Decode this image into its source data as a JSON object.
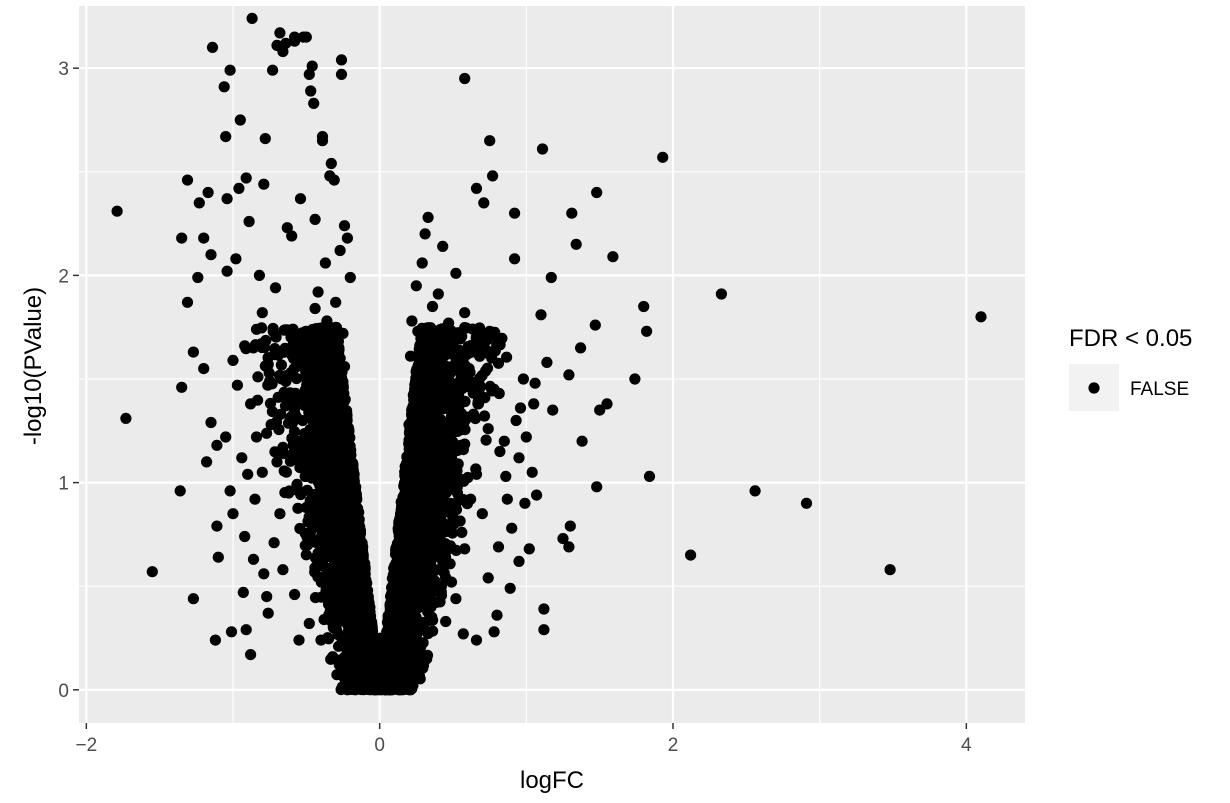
{
  "chart_data": {
    "type": "scatter",
    "title": "",
    "xlabel": "logFC",
    "ylabel": "-log10(PValue)",
    "xlim": [
      -2.05,
      4.4
    ],
    "ylim": [
      -0.16,
      3.3
    ],
    "x_ticks": [
      -2,
      0,
      2,
      4
    ],
    "x_tick_labels": [
      "−2",
      "0",
      "2",
      "4"
    ],
    "y_ticks": [
      0,
      1,
      2,
      3
    ],
    "y_tick_labels": [
      "0",
      "1",
      "2",
      "3"
    ],
    "grid": true,
    "legend": {
      "title": "FDR < 0.05",
      "position": "right",
      "entries": [
        {
          "label": "FALSE",
          "color": "#000000"
        }
      ]
    },
    "colors": {
      "panel": "#ebebeb",
      "grid_major": "#ffffff",
      "points": "#000000"
    },
    "series": [
      {
        "name": "FALSE",
        "points": [
          [
            -1.79,
            2.31
          ],
          [
            -1.73,
            1.31
          ],
          [
            -1.55,
            0.57
          ],
          [
            -1.36,
            0.96
          ],
          [
            -1.35,
            1.46
          ],
          [
            -1.35,
            2.18
          ],
          [
            -1.31,
            2.46
          ],
          [
            -1.31,
            1.87
          ],
          [
            -1.27,
            0.44
          ],
          [
            -1.27,
            1.63
          ],
          [
            -1.24,
            1.99
          ],
          [
            -1.23,
            2.35
          ],
          [
            -1.2,
            2.18
          ],
          [
            -1.2,
            1.55
          ],
          [
            -1.18,
            1.1
          ],
          [
            -1.17,
            2.4
          ],
          [
            -1.15,
            1.29
          ],
          [
            -1.15,
            2.1
          ],
          [
            -1.14,
            3.1
          ],
          [
            -1.12,
            0.24
          ],
          [
            -1.11,
            0.79
          ],
          [
            -1.11,
            1.18
          ],
          [
            -1.1,
            0.64
          ],
          [
            -1.06,
            2.91
          ],
          [
            -1.05,
            1.22
          ],
          [
            -1.05,
            2.67
          ],
          [
            -1.04,
            2.37
          ],
          [
            -1.04,
            2.02
          ],
          [
            -1.02,
            2.99
          ],
          [
            -1.01,
            0.28
          ],
          [
            -1.0,
            1.59
          ],
          [
            -1.0,
            0.85
          ],
          [
            -0.98,
            2.08
          ],
          [
            -0.96,
            2.42
          ],
          [
            -0.95,
            2.75
          ],
          [
            -0.93,
            0.47
          ],
          [
            -0.92,
            0.74
          ],
          [
            -0.91,
            0.29
          ],
          [
            -0.91,
            2.47
          ],
          [
            -0.9,
            1.04
          ],
          [
            -0.89,
            2.26
          ],
          [
            -0.88,
            0.17
          ],
          [
            -0.87,
            3.24
          ],
          [
            -0.85,
            0.92
          ],
          [
            -0.84,
            1.74
          ],
          [
            -0.82,
            2.0
          ],
          [
            -0.8,
            1.82
          ],
          [
            -0.79,
            2.44
          ],
          [
            -0.79,
            0.56
          ],
          [
            -0.78,
            2.66
          ],
          [
            -0.77,
            0.45
          ],
          [
            -0.75,
            1.49
          ],
          [
            -0.73,
            2.99
          ],
          [
            -0.7,
            3.11
          ],
          [
            -0.68,
            3.17
          ],
          [
            -0.66,
            3.08
          ],
          [
            -0.64,
            3.12
          ],
          [
            -0.63,
            2.23
          ],
          [
            -0.6,
            2.19
          ],
          [
            -0.58,
            3.13
          ],
          [
            -0.58,
            3.15
          ],
          [
            -0.54,
            2.37
          ],
          [
            -0.52,
            3.15
          ],
          [
            -0.5,
            3.15
          ],
          [
            -0.48,
            2.97
          ],
          [
            -0.47,
            2.89
          ],
          [
            -0.46,
            3.01
          ],
          [
            -0.45,
            2.83
          ],
          [
            -0.44,
            2.27
          ],
          [
            -0.39,
            2.65
          ],
          [
            -0.39,
            2.67
          ],
          [
            -0.34,
            2.48
          ],
          [
            -0.33,
            2.54
          ],
          [
            -0.31,
            2.46
          ],
          [
            -0.26,
            3.04
          ],
          [
            -0.26,
            2.97
          ],
          [
            -0.24,
            2.24
          ],
          [
            -0.22,
            2.18
          ],
          [
            -0.2,
            1.99
          ],
          [
            0.58,
            2.95
          ],
          [
            0.66,
            2.42
          ],
          [
            0.71,
            2.35
          ],
          [
            0.75,
            2.65
          ],
          [
            0.77,
            2.48
          ],
          [
            0.92,
            2.3
          ],
          [
            0.92,
            2.08
          ],
          [
            0.98,
            1.5
          ],
          [
            1.06,
            1.48
          ],
          [
            1.1,
            1.81
          ],
          [
            1.11,
            2.61
          ],
          [
            1.14,
            1.58
          ],
          [
            1.17,
            1.99
          ],
          [
            1.18,
            1.35
          ],
          [
            1.29,
            1.52
          ],
          [
            1.31,
            2.3
          ],
          [
            1.34,
            2.15
          ],
          [
            1.37,
            1.65
          ],
          [
            1.38,
            1.2
          ],
          [
            1.47,
            1.76
          ],
          [
            1.48,
            2.4
          ],
          [
            1.5,
            1.35
          ],
          [
            1.55,
            1.38
          ],
          [
            1.59,
            2.09
          ],
          [
            1.74,
            1.5
          ],
          [
            1.8,
            1.85
          ],
          [
            1.82,
            1.73
          ],
          [
            1.84,
            1.03
          ],
          [
            1.93,
            2.57
          ],
          [
            1.48,
            0.98
          ],
          [
            2.12,
            0.65
          ],
          [
            2.33,
            1.91
          ],
          [
            2.56,
            0.96
          ],
          [
            2.91,
            0.9
          ],
          [
            3.48,
            0.58
          ],
          [
            4.1,
            1.8
          ],
          [
            1.12,
            0.29
          ],
          [
            1.12,
            0.39
          ],
          [
            1.3,
            0.79
          ],
          [
            1.29,
            0.69
          ],
          [
            1.25,
            0.73
          ],
          [
            1.02,
            0.68
          ],
          [
            0.95,
            0.62
          ],
          [
            0.99,
            0.9
          ],
          [
            0.8,
            0.36
          ],
          [
            0.78,
            0.28
          ],
          [
            0.66,
            0.24
          ],
          [
            0.57,
            0.27
          ],
          [
            1.07,
            0.94
          ],
          [
            1.04,
            1.05
          ],
          [
            0.85,
            1.2
          ],
          [
            0.49,
            0.52
          ],
          [
            0.35,
            0.4
          ],
          [
            -0.66,
            0.58
          ],
          [
            -0.58,
            0.46
          ],
          [
            -0.55,
            0.24
          ],
          [
            -0.48,
            0.32
          ],
          [
            -0.4,
            0.24
          ],
          [
            -0.32,
            0.16
          ],
          [
            -0.72,
            0.71
          ],
          [
            -0.76,
            0.37
          ],
          [
            -0.56,
            1.64
          ],
          [
            -0.6,
            1.32
          ],
          [
            -0.66,
            1.17
          ],
          [
            -0.7,
            1.1
          ],
          [
            -0.5,
            1.73
          ],
          [
            -0.44,
            1.84
          ],
          [
            -0.42,
            1.92
          ],
          [
            -0.37,
            2.06
          ],
          [
            -0.36,
            1.78
          ],
          [
            -0.3,
            1.87
          ],
          [
            -0.29,
            1.67
          ],
          [
            -0.27,
            2.12
          ],
          [
            -0.25,
            1.72
          ],
          [
            -0.24,
            1.56
          ],
          [
            0.21,
            1.61
          ],
          [
            0.22,
            1.78
          ],
          [
            0.25,
            1.95
          ],
          [
            0.26,
            1.73
          ],
          [
            0.28,
            1.43
          ],
          [
            0.29,
            2.06
          ],
          [
            0.31,
            2.2
          ],
          [
            0.33,
            2.28
          ],
          [
            0.36,
            1.85
          ],
          [
            0.38,
            1.7
          ],
          [
            0.4,
            1.91
          ],
          [
            0.43,
            2.14
          ],
          [
            0.47,
            1.77
          ],
          [
            0.5,
            1.62
          ],
          [
            0.52,
            2.01
          ],
          [
            0.55,
            1.47
          ],
          [
            0.58,
            1.82
          ],
          [
            0.61,
            1.55
          ],
          [
            0.64,
            1.33
          ],
          [
            0.68,
            1.68
          ],
          [
            0.71,
            1.41
          ],
          [
            0.74,
            1.26
          ],
          [
            0.78,
            1.45
          ],
          [
            0.82,
            1.15
          ],
          [
            0.86,
            1.03
          ],
          [
            0.9,
            0.78
          ],
          [
            0.93,
            1.3
          ],
          [
            0.95,
            1.12
          ],
          [
            0.62,
            0.92
          ],
          [
            0.58,
            0.68
          ],
          [
            0.52,
            0.44
          ],
          [
            0.45,
            0.33
          ],
          [
            0.41,
            0.87
          ],
          [
            0.37,
            1.1
          ],
          [
            0.33,
            0.62
          ],
          [
            -0.5,
            0.88
          ],
          [
            -0.53,
            1.2
          ],
          [
            -0.47,
            1.41
          ],
          [
            -0.42,
            0.66
          ],
          [
            -0.38,
            1.05
          ],
          [
            -0.35,
            0.49
          ],
          [
            -0.33,
            1.32
          ],
          [
            -0.31,
            0.82
          ],
          [
            -0.45,
            1.52
          ],
          [
            -0.62,
            0.95
          ],
          [
            -0.68,
            0.85
          ],
          [
            -0.74,
            1.28
          ],
          [
            -0.8,
            1.05
          ],
          [
            -0.84,
            1.22
          ],
          [
            -0.88,
            1.38
          ],
          [
            -0.86,
            0.63
          ],
          [
            -0.94,
            1.12
          ],
          [
            -0.97,
            1.47
          ],
          [
            -1.02,
            0.96
          ],
          [
            -0.92,
            1.66
          ],
          [
            -0.71,
            1.94
          ],
          [
            -0.76,
            1.57
          ],
          [
            -0.83,
            1.51
          ],
          [
            0.2,
            1.28
          ],
          [
            0.24,
            1.04
          ],
          [
            0.27,
            0.82
          ],
          [
            0.3,
            0.58
          ],
          [
            0.34,
            1.52
          ],
          [
            0.44,
            1.27
          ],
          [
            0.48,
            0.98
          ],
          [
            0.53,
            1.16
          ],
          [
            0.56,
            0.76
          ],
          [
            0.66,
            1.04
          ],
          [
            0.7,
            0.85
          ],
          [
            0.74,
            0.54
          ],
          [
            0.81,
            0.69
          ],
          [
            0.87,
            0.92
          ],
          [
            0.89,
            0.49
          ],
          [
            0.96,
            1.36
          ],
          [
            1.0,
            1.22
          ],
          [
            1.05,
            1.38
          ]
        ]
      }
    ],
    "dense_core": {
      "note_free": true,
      "n": 5200,
      "slope_left": 6.0,
      "slope_right": 6.2,
      "ymax": 1.75
    }
  }
}
